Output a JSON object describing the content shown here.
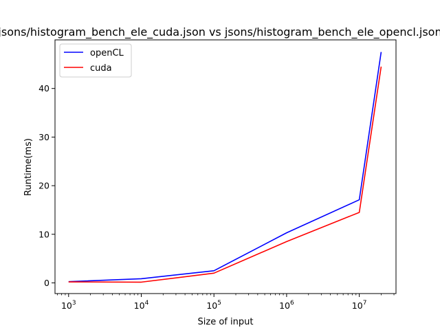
{
  "chart_data": {
    "type": "line",
    "title": "jsons/histogram_bench_ele_cuda.json vs jsons/histogram_bench_ele_opencl.json",
    "xlabel": "Size of input",
    "ylabel": "Runtime(ms)",
    "x_scale": "log",
    "xlim": [
      650,
      32000000
    ],
    "ylim": [
      -2.2,
      50
    ],
    "x_ticks": [
      {
        "label": "10",
        "sup": "3",
        "value": 1000
      },
      {
        "label": "10",
        "sup": "4",
        "value": 10000
      },
      {
        "label": "10",
        "sup": "5",
        "value": 100000
      },
      {
        "label": "10",
        "sup": "6",
        "value": 1000000
      },
      {
        "label": "10",
        "sup": "7",
        "value": 10000000
      }
    ],
    "y_ticks": [
      {
        "label": "0",
        "value": 0
      },
      {
        "label": "10",
        "value": 10
      },
      {
        "label": "20",
        "value": 20
      },
      {
        "label": "30",
        "value": 30
      },
      {
        "label": "40",
        "value": 40
      }
    ],
    "grid": false,
    "legend_position": "top-left",
    "x": [
      1000,
      10000,
      100000,
      1000000,
      10000000,
      20000000
    ],
    "series": [
      {
        "name": "openCL",
        "color": "#0000ff",
        "values": [
          0.25,
          0.85,
          2.5,
          10.3,
          17.1,
          47.5
        ]
      },
      {
        "name": "cuda",
        "color": "#ff0000",
        "values": [
          0.2,
          0.15,
          2.0,
          8.5,
          14.5,
          44.5
        ]
      }
    ]
  }
}
